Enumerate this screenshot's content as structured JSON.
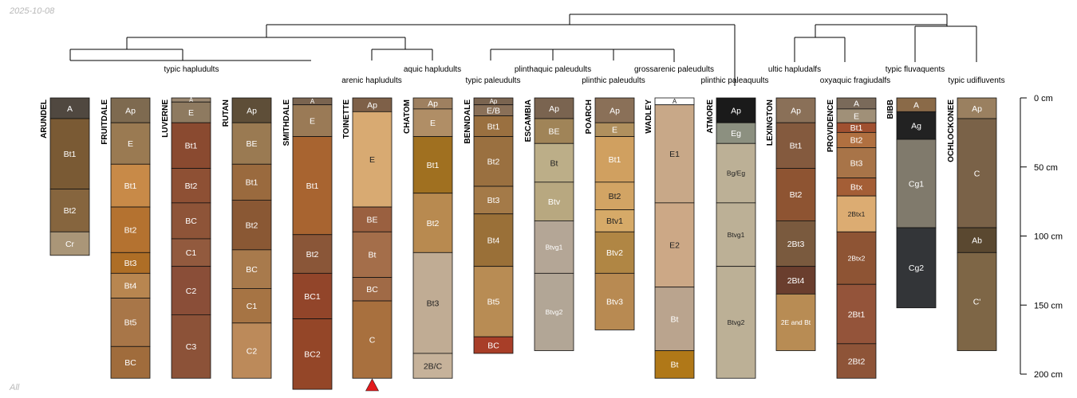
{
  "header": {
    "date_label": "2025-10-08"
  },
  "footer": {
    "corner_label": "All"
  },
  "chart_data": {
    "type": "soil-profile-sketches",
    "ylim": [
      0,
      200
    ],
    "y_unit": "cm",
    "ticks": [
      {
        "value": 0,
        "label": "0 cm"
      },
      {
        "value": 50,
        "label": "50 cm"
      },
      {
        "value": 100,
        "label": "100 cm"
      },
      {
        "value": 150,
        "label": "150 cm"
      },
      {
        "value": 200,
        "label": "200 cm"
      }
    ],
    "taxa_labels": [
      {
        "text": "typic hapludults",
        "pos": 0
      },
      {
        "text": "arenic hapludults",
        "pos": 1
      },
      {
        "text": "aquic hapludults",
        "pos": 2
      },
      {
        "text": "typic paleudults",
        "pos": 3
      },
      {
        "text": "plinthaquic paleudults",
        "pos": 4
      },
      {
        "text": "plinthic paleudults",
        "pos": 5
      },
      {
        "text": "grossarenic paleudults",
        "pos": 6
      },
      {
        "text": "plinthic paleaquults",
        "pos": 7
      },
      {
        "text": "ultic hapludalfs",
        "pos": 8
      },
      {
        "text": "oxyaquic fragiudalfs",
        "pos": 9
      },
      {
        "text": "typic fluvaquents",
        "pos": 10
      },
      {
        "text": "typic udifluvents",
        "pos": 11
      }
    ],
    "profiles": [
      {
        "name": "ARUNDEL",
        "horizons": [
          {
            "label": "A",
            "top": 0,
            "bottom": 15,
            "color": "#504840"
          },
          {
            "label": "Bt1",
            "top": 15,
            "bottom": 66,
            "color": "#7a5a34"
          },
          {
            "label": "Bt2",
            "top": 66,
            "bottom": 97,
            "color": "#86653e"
          },
          {
            "label": "Cr",
            "top": 97,
            "bottom": 114,
            "color": "#aa9678"
          }
        ]
      },
      {
        "name": "FRUITDALE",
        "horizons": [
          {
            "label": "Ap",
            "top": 0,
            "bottom": 18,
            "color": "#7e6a50"
          },
          {
            "label": "E",
            "top": 18,
            "bottom": 48,
            "color": "#9a7a52"
          },
          {
            "label": "Bt1",
            "top": 48,
            "bottom": 79,
            "color": "#c88a48"
          },
          {
            "label": "Bt2",
            "top": 79,
            "bottom": 112,
            "color": "#b47230"
          },
          {
            "label": "Bt3",
            "top": 112,
            "bottom": 127,
            "color": "#ae6e26"
          },
          {
            "label": "Bt4",
            "top": 127,
            "bottom": 145,
            "color": "#b88650"
          },
          {
            "label": "Bt5",
            "top": 145,
            "bottom": 180,
            "color": "#a87648"
          },
          {
            "label": "BC",
            "top": 180,
            "bottom": 203,
            "color": "#a06c3c"
          }
        ]
      },
      {
        "name": "LUVERNE",
        "horizons": [
          {
            "label": "A",
            "top": 0,
            "bottom": 3,
            "color": "#9a8770"
          },
          {
            "label": "E",
            "top": 3,
            "bottom": 18,
            "color": "#8e7a60"
          },
          {
            "label": "Bt1",
            "top": 18,
            "bottom": 51,
            "color": "#8a4a30"
          },
          {
            "label": "Bt2",
            "top": 51,
            "bottom": 76,
            "color": "#8e5034"
          },
          {
            "label": "BC",
            "top": 76,
            "bottom": 102,
            "color": "#8e5438"
          },
          {
            "label": "C1",
            "top": 102,
            "bottom": 122,
            "color": "#925a3e"
          },
          {
            "label": "C2",
            "top": 122,
            "bottom": 157,
            "color": "#8a4e38"
          },
          {
            "label": "C3",
            "top": 157,
            "bottom": 203,
            "color": "#8c5238"
          }
        ]
      },
      {
        "name": "RUTAN",
        "horizons": [
          {
            "label": "Ap",
            "top": 0,
            "bottom": 18,
            "color": "#5e4e38"
          },
          {
            "label": "BE",
            "top": 18,
            "bottom": 48,
            "color": "#9a7a52"
          },
          {
            "label": "Bt1",
            "top": 48,
            "bottom": 74,
            "color": "#9a6a3e"
          },
          {
            "label": "Bt2",
            "top": 74,
            "bottom": 110,
            "color": "#8a5834"
          },
          {
            "label": "BC",
            "top": 110,
            "bottom": 138,
            "color": "#a87a4c"
          },
          {
            "label": "C1",
            "top": 138,
            "bottom": 163,
            "color": "#a67444"
          },
          {
            "label": "C2",
            "top": 163,
            "bottom": 203,
            "color": "#bc8a5a"
          }
        ]
      },
      {
        "name": "SMITHDALE",
        "horizons": [
          {
            "label": "A",
            "top": 0,
            "bottom": 5,
            "color": "#7a6450"
          },
          {
            "label": "E",
            "top": 5,
            "bottom": 28,
            "color": "#9a7a56"
          },
          {
            "label": "Bt1",
            "top": 28,
            "bottom": 99,
            "color": "#a86430"
          },
          {
            "label": "Bt2",
            "top": 99,
            "bottom": 127,
            "color": "#8a5638"
          },
          {
            "label": "BC1",
            "top": 127,
            "bottom": 160,
            "color": "#92452a"
          },
          {
            "label": "BC2",
            "top": 160,
            "bottom": 211,
            "color": "#944628"
          }
        ]
      },
      {
        "name": "TOINETTE",
        "horizons": [
          {
            "label": "Ap",
            "top": 0,
            "bottom": 10,
            "color": "#7e6048"
          },
          {
            "label": "E",
            "top": 10,
            "bottom": 79,
            "color": "#d8aa72"
          },
          {
            "label": "BE",
            "top": 79,
            "bottom": 97,
            "color": "#9a6040"
          },
          {
            "label": "Bt",
            "top": 97,
            "bottom": 130,
            "color": "#a46e4a"
          },
          {
            "label": "BC",
            "top": 130,
            "bottom": 147,
            "color": "#a06a46"
          },
          {
            "label": "C",
            "top": 147,
            "bottom": 203,
            "color": "#a8703e"
          }
        ]
      },
      {
        "name": "CHATOM",
        "horizons": [
          {
            "label": "Ap",
            "top": 0,
            "bottom": 8,
            "color": "#9e8060"
          },
          {
            "label": "E",
            "top": 8,
            "bottom": 28,
            "color": "#b08e66"
          },
          {
            "label": "Bt1",
            "top": 28,
            "bottom": 69,
            "color": "#a07020"
          },
          {
            "label": "Bt2",
            "top": 69,
            "bottom": 112,
            "color": "#b88a50"
          },
          {
            "label": "Bt3",
            "top": 112,
            "bottom": 185,
            "color": "#c0ac94"
          },
          {
            "label": "2B/C",
            "top": 185,
            "bottom": 203,
            "color": "#c6b29a"
          }
        ]
      },
      {
        "name": "BENNDALE",
        "horizons": [
          {
            "label": "Ap",
            "top": 0,
            "bottom": 5,
            "color": "#7a6450"
          },
          {
            "label": "E/B",
            "top": 5,
            "bottom": 13,
            "color": "#8a7058"
          },
          {
            "label": "Bt1",
            "top": 13,
            "bottom": 28,
            "color": "#9a7040"
          },
          {
            "label": "Bt2",
            "top": 28,
            "bottom": 64,
            "color": "#9a7040"
          },
          {
            "label": "Bt3",
            "top": 64,
            "bottom": 84,
            "color": "#a47a48"
          },
          {
            "label": "Bt4",
            "top": 84,
            "bottom": 122,
            "color": "#9a7038"
          },
          {
            "label": "Bt5",
            "top": 122,
            "bottom": 173,
            "color": "#b88c54"
          },
          {
            "label": "BC",
            "top": 173,
            "bottom": 185,
            "color": "#a83e28"
          }
        ]
      },
      {
        "name": "ESCAMBIA",
        "horizons": [
          {
            "label": "Ap",
            "top": 0,
            "bottom": 15,
            "color": "#7a6450"
          },
          {
            "label": "BE",
            "top": 15,
            "bottom": 33,
            "color": "#a08458"
          },
          {
            "label": "Bt",
            "top": 33,
            "bottom": 61,
            "color": "#bcae88"
          },
          {
            "label": "Btv",
            "top": 61,
            "bottom": 89,
            "color": "#b8a880"
          },
          {
            "label": "Btvg1",
            "top": 89,
            "bottom": 127,
            "color": "#b4a696"
          },
          {
            "label": "Btvg2",
            "top": 127,
            "bottom": 183,
            "color": "#b2a696"
          }
        ]
      },
      {
        "name": "POARCH",
        "horizons": [
          {
            "label": "Ap",
            "top": 0,
            "bottom": 18,
            "color": "#8a7058"
          },
          {
            "label": "E",
            "top": 18,
            "bottom": 28,
            "color": "#b0905e"
          },
          {
            "label": "Bt1",
            "top": 28,
            "bottom": 61,
            "color": "#d0a060"
          },
          {
            "label": "Bt2",
            "top": 61,
            "bottom": 81,
            "color": "#d2a464"
          },
          {
            "label": "Btv1",
            "top": 81,
            "bottom": 97,
            "color": "#d6aa68"
          },
          {
            "label": "Btv2",
            "top": 97,
            "bottom": 127,
            "color": "#b08644"
          },
          {
            "label": "Btv3",
            "top": 127,
            "bottom": 168,
            "color": "#b88a52"
          }
        ]
      },
      {
        "name": "WADLEY",
        "horizons": [
          {
            "label": "A",
            "top": 0,
            "bottom": 5,
            "color": "#ffffff"
          },
          {
            "label": "E1",
            "top": 5,
            "bottom": 76,
            "color": "#c8a888"
          },
          {
            "label": "E2",
            "top": 76,
            "bottom": 137,
            "color": "#cca886"
          },
          {
            "label": "Bt",
            "top": 137,
            "bottom": 183,
            "color": "#baa48e"
          },
          {
            "label": "Bt",
            "top": 183,
            "bottom": 203,
            "color": "#b07818"
          }
        ]
      },
      {
        "name": "ATMORE",
        "horizons": [
          {
            "label": "Ap",
            "top": 0,
            "bottom": 18,
            "color": "#1a1a1a"
          },
          {
            "label": "Eg",
            "top": 18,
            "bottom": 33,
            "color": "#8c9080"
          },
          {
            "label": "Bg/Eg",
            "top": 33,
            "bottom": 76,
            "color": "#bcb096"
          },
          {
            "label": "Btvg1",
            "top": 76,
            "bottom": 122,
            "color": "#bcb096"
          },
          {
            "label": "Btvg2",
            "top": 122,
            "bottom": 203,
            "color": "#bcb096"
          }
        ]
      },
      {
        "name": "LEXINGTON",
        "horizons": [
          {
            "label": "Ap",
            "top": 0,
            "bottom": 18,
            "color": "#8a7058"
          },
          {
            "label": "Bt1",
            "top": 18,
            "bottom": 51,
            "color": "#845a3e"
          },
          {
            "label": "Bt2",
            "top": 51,
            "bottom": 89,
            "color": "#8e5432"
          },
          {
            "label": "2Bt3",
            "top": 89,
            "bottom": 122,
            "color": "#7a5a3e"
          },
          {
            "label": "2Bt4",
            "top": 122,
            "bottom": 142,
            "color": "#6a3e2e"
          },
          {
            "label": "2E and Bt",
            "top": 142,
            "bottom": 183,
            "color": "#b88c54"
          }
        ]
      },
      {
        "name": "PROVIDENCE",
        "horizons": [
          {
            "label": "A",
            "top": 0,
            "bottom": 8,
            "color": "#7a6a5a"
          },
          {
            "label": "E",
            "top": 8,
            "bottom": 18,
            "color": "#a09078"
          },
          {
            "label": "Bt1",
            "top": 18,
            "bottom": 25,
            "color": "#a05030"
          },
          {
            "label": "Bt2",
            "top": 25,
            "bottom": 36,
            "color": "#b07040"
          },
          {
            "label": "Bt3",
            "top": 36,
            "bottom": 58,
            "color": "#a87448"
          },
          {
            "label": "Btx",
            "top": 58,
            "bottom": 71,
            "color": "#a45e36"
          },
          {
            "label": "2Btx1",
            "top": 71,
            "bottom": 97,
            "color": "#dcac72"
          },
          {
            "label": "2Btx2",
            "top": 97,
            "bottom": 135,
            "color": "#8e5434"
          },
          {
            "label": "2Bt1",
            "top": 135,
            "bottom": 178,
            "color": "#94543a"
          },
          {
            "label": "2Bt2",
            "top": 178,
            "bottom": 203,
            "color": "#8e5438"
          }
        ]
      },
      {
        "name": "BIBB",
        "horizons": [
          {
            "label": "A",
            "top": 0,
            "bottom": 10,
            "color": "#8a6a48"
          },
          {
            "label": "Ag",
            "top": 10,
            "bottom": 30,
            "color": "#222222"
          },
          {
            "label": "Cg1",
            "top": 30,
            "bottom": 94,
            "color": "#807a6c"
          },
          {
            "label": "Cg2",
            "top": 94,
            "bottom": 152,
            "color": "#333538"
          }
        ]
      },
      {
        "name": "OCHLOCKONEE",
        "horizons": [
          {
            "label": "Ap",
            "top": 0,
            "bottom": 15,
            "color": "#9a8060"
          },
          {
            "label": "C",
            "top": 15,
            "bottom": 94,
            "color": "#7a6248"
          },
          {
            "label": "Ab",
            "top": 94,
            "bottom": 112,
            "color": "#5a4830"
          },
          {
            "label": "C'",
            "top": 112,
            "bottom": 183,
            "color": "#7e6646"
          }
        ]
      }
    ]
  }
}
